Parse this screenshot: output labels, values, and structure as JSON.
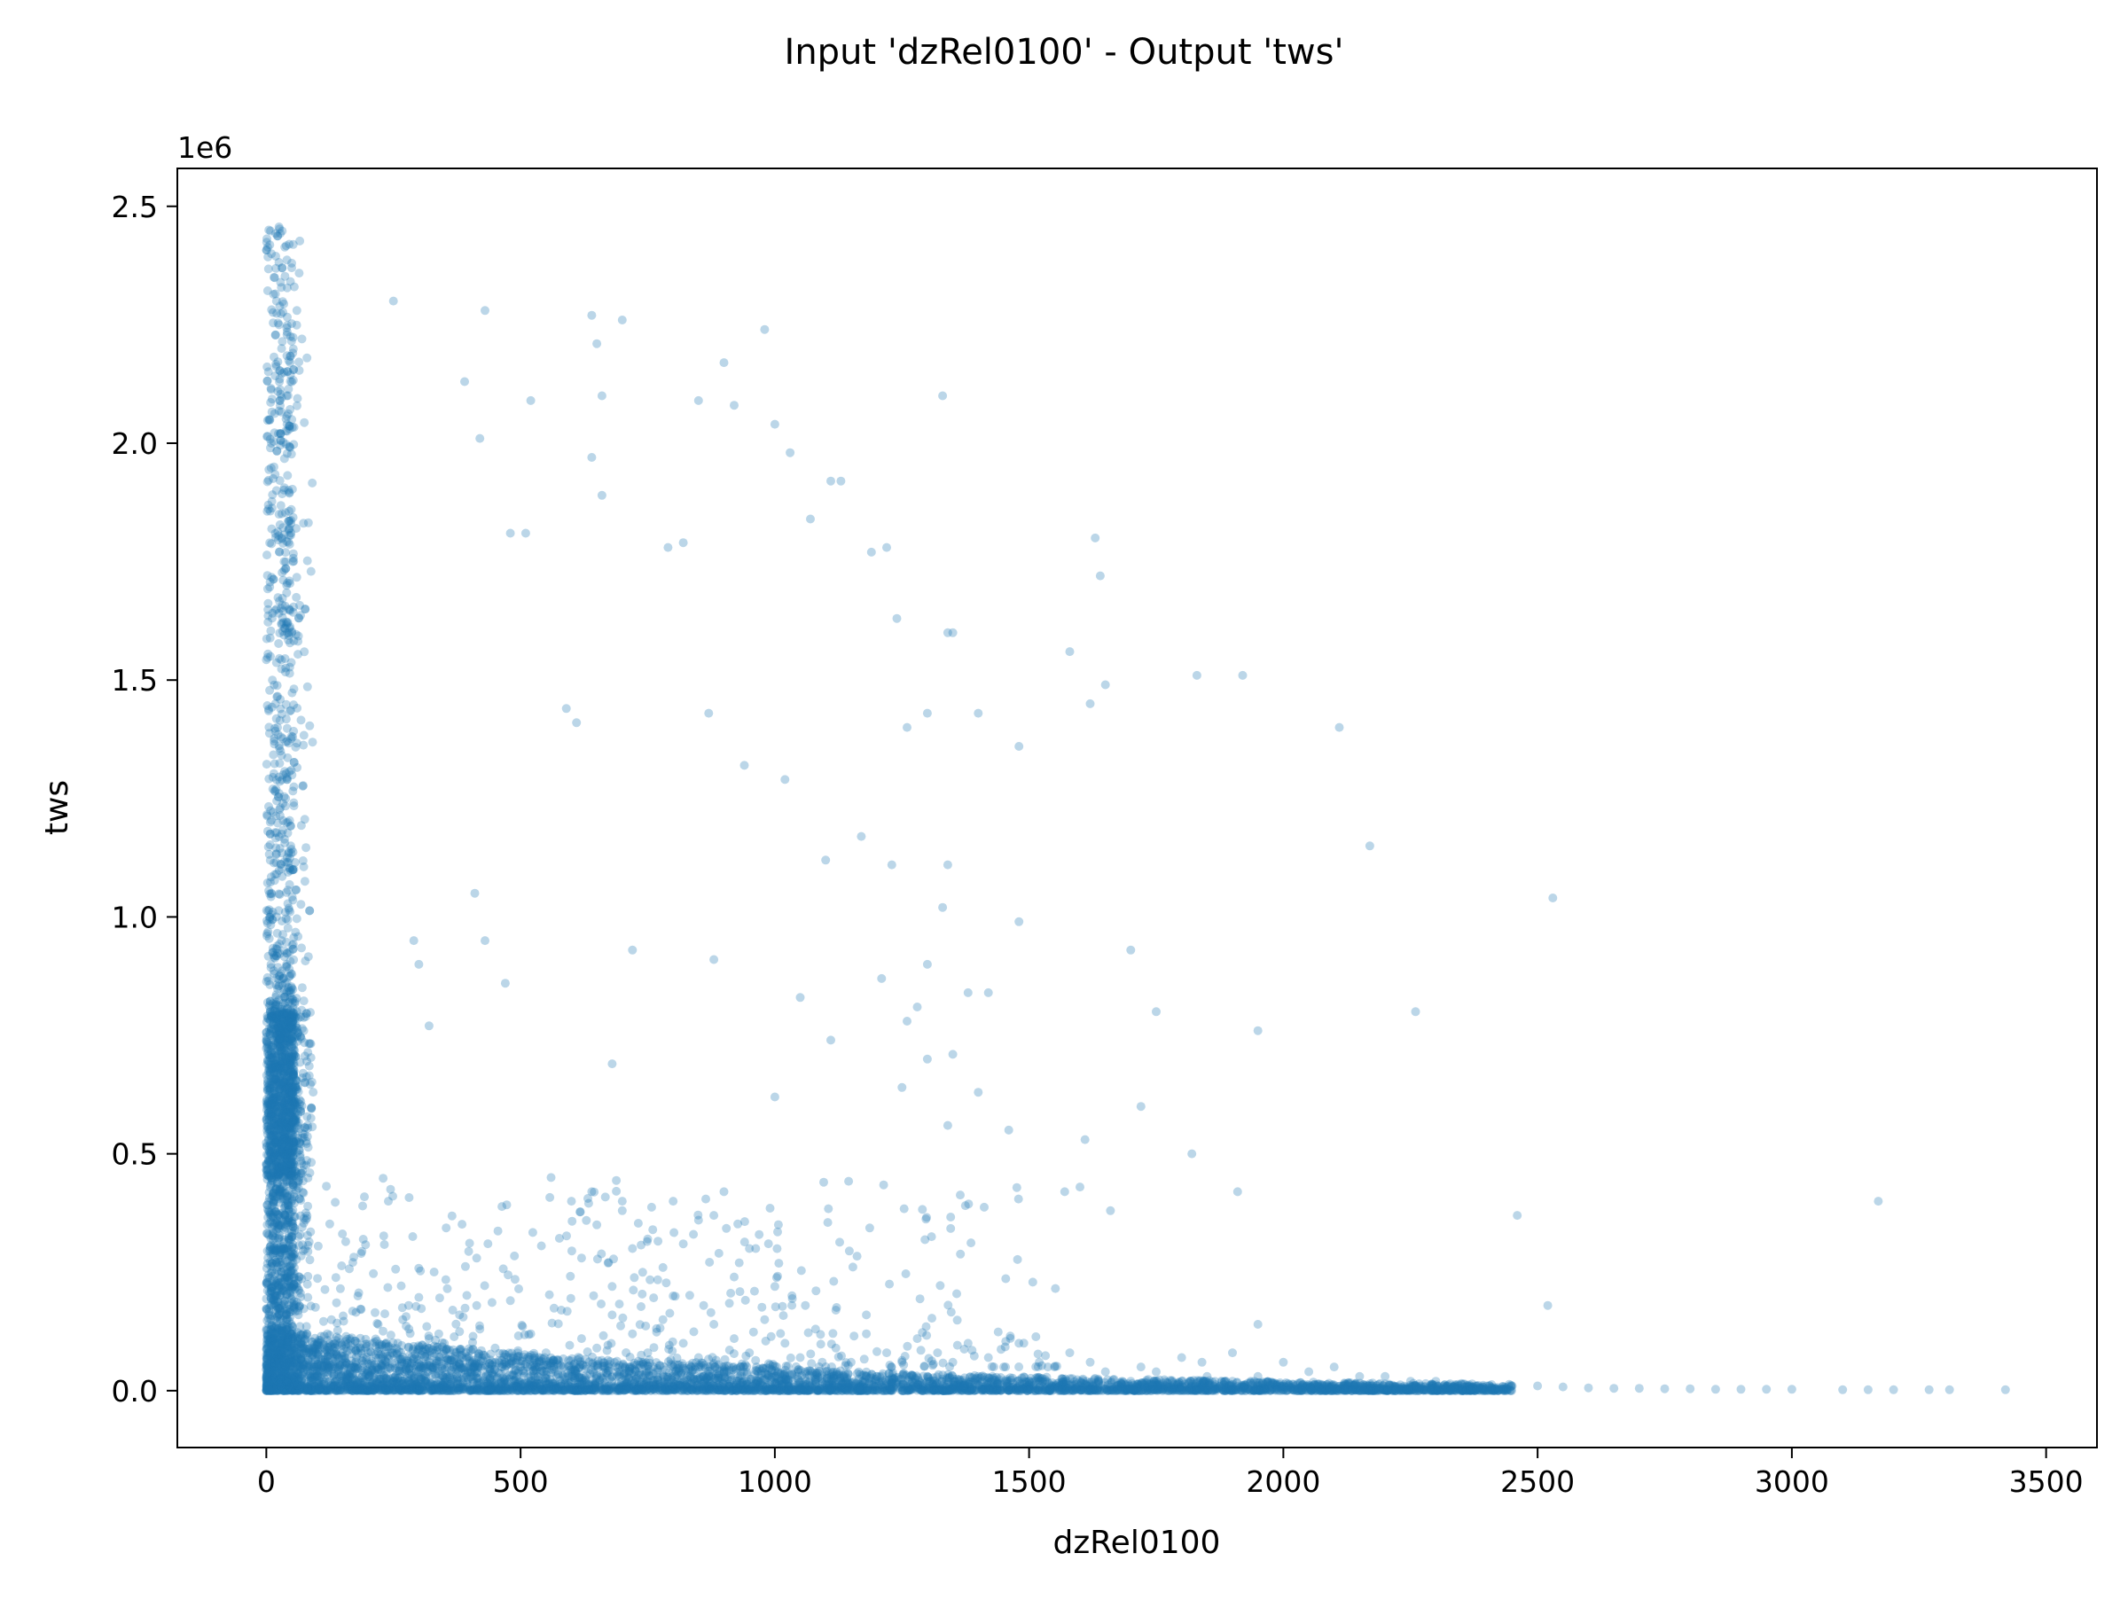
{
  "chart_data": {
    "type": "scatter",
    "title": "Input 'dzRel0100' - Output 'tws'",
    "xlabel": "dzRel0100",
    "ylabel": "tws",
    "y_offset_label": "1e6",
    "xlim": [
      -175,
      3600
    ],
    "ylim": [
      -0.12,
      2.58
    ],
    "xticks": [
      0,
      500,
      1000,
      1500,
      2000,
      2500,
      3000,
      3500
    ],
    "xtick_labels": [
      "0",
      "500",
      "1000",
      "1500",
      "2000",
      "2500",
      "3000",
      "3500"
    ],
    "yticks": [
      0.0,
      0.5,
      1.0,
      1.5,
      2.0,
      2.5
    ],
    "ytick_labels": [
      "0.0",
      "0.5",
      "1.0",
      "1.5",
      "2.0",
      "2.5"
    ],
    "grid": false,
    "legend": "none",
    "point_color": "#1f77b4",
    "point_alpha": 0.3,
    "series": [
      {
        "x": [
          5,
          10,
          15,
          20,
          25,
          30,
          35,
          40,
          45,
          50,
          55,
          60,
          70,
          80,
          5,
          10,
          15,
          20,
          25,
          30,
          35,
          40,
          45,
          50,
          8,
          12,
          18,
          22,
          28,
          33,
          38,
          42,
          48,
          52,
          10,
          20,
          30,
          40,
          50,
          60,
          15,
          25,
          35,
          45,
          5,
          10,
          15,
          20,
          25,
          30,
          10,
          20,
          30,
          40,
          50,
          12,
          22,
          32,
          42,
          8,
          18,
          28,
          38,
          48,
          5,
          15,
          25,
          35,
          45,
          55,
          65,
          10,
          20,
          30,
          40,
          5,
          15,
          25,
          35,
          45,
          10,
          20,
          30,
          40,
          50,
          60,
          70,
          80,
          90,
          100,
          250,
          430,
          640,
          650,
          700,
          980,
          1000,
          390,
          420,
          480,
          520,
          660,
          900,
          1030,
          1130,
          1330,
          1340,
          510,
          640,
          850,
          920,
          1070,
          1110,
          1220,
          1630,
          1640,
          820,
          790,
          1190,
          1300,
          1580,
          1620,
          1650,
          1240,
          1260,
          1350,
          1400,
          1480,
          1830,
          1920,
          2110,
          590,
          610,
          660,
          870,
          940,
          1020,
          1100,
          1170,
          2170,
          1340,
          1330,
          1050,
          1230,
          2530,
          240,
          290,
          300,
          320,
          410,
          430,
          470,
          680,
          720,
          880,
          1000,
          1300,
          1380,
          1420,
          1480,
          1700,
          1610,
          1820,
          1950,
          1110,
          1260,
          1750,
          2260,
          1210,
          1250,
          1280,
          1350,
          1400,
          1460,
          1600,
          1720,
          1300,
          1660,
          1340,
          3170,
          2460,
          2520,
          1570,
          1910,
          1800,
          1840,
          1900,
          1950,
          2000,
          2050,
          2100,
          2150,
          2200,
          2250,
          2300,
          2350,
          2400,
          2450,
          2500,
          2550,
          2600,
          2650,
          2700,
          2750,
          2800,
          2850,
          2900,
          2950,
          3000,
          3100,
          3150,
          3200,
          3270,
          3310,
          3420,
          100,
          200,
          300,
          400,
          500,
          600,
          700,
          800,
          900,
          1000,
          1100,
          1200,
          1300,
          1400,
          1500,
          1600,
          1700,
          1800,
          1900,
          2000,
          150,
          250,
          350,
          450,
          550,
          650,
          750,
          850,
          950,
          1050,
          1150,
          1250,
          1350,
          1450,
          1550,
          1650,
          1750,
          1850,
          1950,
          120,
          220,
          320,
          420,
          520,
          620,
          720,
          820,
          920,
          1020,
          1120,
          1220,
          1320,
          1420,
          1520,
          1620,
          1720,
          180,
          280,
          380,
          480,
          580,
          680,
          780,
          880,
          980,
          1080,
          1180,
          1280,
          1380,
          1480,
          1580,
          600,
          650,
          700,
          750,
          800,
          850,
          900,
          950,
          620,
          680,
          740,
          800,
          860,
          920,
          960,
          560,
          640,
          720,
          780,
          840,
          890,
          930,
          700,
          760,
          820,
          880,
          1000,
          1060,
          1120,
          1180
        ],
        "y": [
          2.45,
          2.4,
          2.35,
          2.3,
          2.25,
          2.2,
          2.15,
          2.1,
          2.42,
          2.38,
          2.33,
          2.28,
          2.22,
          2.18,
          2.05,
          2.0,
          1.95,
          1.9,
          1.85,
          1.8,
          1.75,
          1.7,
          1.65,
          1.6,
          1.55,
          1.5,
          1.45,
          1.4,
          1.35,
          1.3,
          1.25,
          1.2,
          1.15,
          1.1,
          1.05,
          1.0,
          0.95,
          0.9,
          0.85,
          0.8,
          0.78,
          0.75,
          0.72,
          0.7,
          0.68,
          0.66,
          0.64,
          0.62,
          0.6,
          0.58,
          0.56,
          0.54,
          0.52,
          0.5,
          0.48,
          0.46,
          0.44,
          0.42,
          0.4,
          0.55,
          0.6,
          0.65,
          0.7,
          0.5,
          0.38,
          0.35,
          0.32,
          0.3,
          0.28,
          0.26,
          0.24,
          0.22,
          0.2,
          0.18,
          0.16,
          0.14,
          0.12,
          0.1,
          0.08,
          0.06,
          0.05,
          0.04,
          0.03,
          0.02,
          0.06,
          0.08,
          0.1,
          0.12,
          0.07,
          0.05,
          2.3,
          2.28,
          2.27,
          2.21,
          2.26,
          2.24,
          2.04,
          2.13,
          2.01,
          1.81,
          2.09,
          2.1,
          2.17,
          1.98,
          1.92,
          2.1,
          1.6,
          1.81,
          1.97,
          2.09,
          2.08,
          1.84,
          1.92,
          1.78,
          1.8,
          1.72,
          1.79,
          1.78,
          1.77,
          1.43,
          1.56,
          1.45,
          1.49,
          1.63,
          1.4,
          1.6,
          1.43,
          1.36,
          1.51,
          1.51,
          1.4,
          1.44,
          1.41,
          1.89,
          1.43,
          1.32,
          1.29,
          1.12,
          1.17,
          1.15,
          1.11,
          1.02,
          0.83,
          1.11,
          1.04,
          0.4,
          0.95,
          0.9,
          0.77,
          1.05,
          0.95,
          0.86,
          0.69,
          0.93,
          0.91,
          0.62,
          0.9,
          0.84,
          0.84,
          0.99,
          0.93,
          0.53,
          0.5,
          0.76,
          0.74,
          0.78,
          0.8,
          0.8,
          0.87,
          0.64,
          0.81,
          0.71,
          0.63,
          0.55,
          0.43,
          0.6,
          0.7,
          0.38,
          0.56,
          0.4,
          0.37,
          0.18,
          0.42,
          0.42,
          0.07,
          0.06,
          0.08,
          0.14,
          0.06,
          0.04,
          0.05,
          0.03,
          0.03,
          0.02,
          0.02,
          0.015,
          0.01,
          0.01,
          0.01,
          0.008,
          0.006,
          0.005,
          0.005,
          0.004,
          0.004,
          0.003,
          0.003,
          0.003,
          0.003,
          0.002,
          0.002,
          0.002,
          0.002,
          0.002,
          0.002,
          0.03,
          0.04,
          0.05,
          0.04,
          0.05,
          0.04,
          0.05,
          0.04,
          0.04,
          0.03,
          0.04,
          0.03,
          0.03,
          0.03,
          0.02,
          0.02,
          0.02,
          0.02,
          0.02,
          0.01,
          0.08,
          0.09,
          0.1,
          0.09,
          0.08,
          0.09,
          0.08,
          0.07,
          0.08,
          0.07,
          0.06,
          0.06,
          0.06,
          0.05,
          0.05,
          0.04,
          0.04,
          0.03,
          0.03,
          0.12,
          0.14,
          0.11,
          0.13,
          0.12,
          0.11,
          0.12,
          0.1,
          0.11,
          0.1,
          0.09,
          0.08,
          0.08,
          0.07,
          0.06,
          0.06,
          0.05,
          0.2,
          0.18,
          0.16,
          0.19,
          0.17,
          0.16,
          0.15,
          0.14,
          0.15,
          0.13,
          0.12,
          0.11,
          0.1,
          0.1,
          0.08,
          0.4,
          0.35,
          0.38,
          0.32,
          0.4,
          0.36,
          0.42,
          0.3,
          0.28,
          0.22,
          0.25,
          0.2,
          0.18,
          0.24,
          0.21,
          0.45,
          0.42,
          0.3,
          0.26,
          0.33,
          0.29,
          0.27,
          0.4,
          0.34,
          0.31,
          0.37,
          0.22,
          0.18,
          0.17,
          0.16
        ]
      }
    ]
  }
}
